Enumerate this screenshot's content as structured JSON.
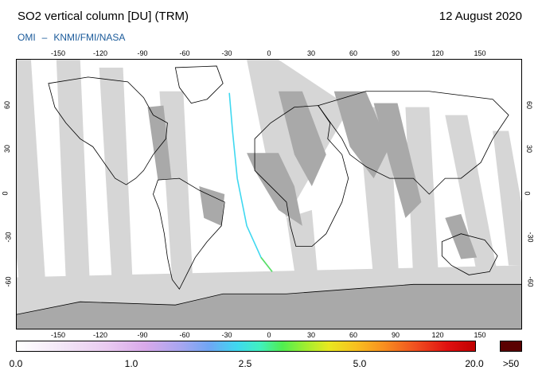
{
  "header": {
    "title": "SO2 vertical column [DU] (TRM)",
    "date": "12 August 2020",
    "credit_left": "OMI",
    "credit_sep": "–",
    "credit_right": "KNMI/FMI/NASA"
  },
  "axes": {
    "lon_ticks": [
      "-150",
      "-120",
      "-90",
      "-60",
      "-30",
      "0",
      "30",
      "60",
      "90",
      "120",
      "150"
    ],
    "lat_ticks": [
      "60",
      "30",
      "0",
      "-30",
      "-60"
    ]
  },
  "colorbar": {
    "labels": [
      "0.0",
      "1.0",
      "2.5",
      "5.0",
      "20.0"
    ],
    "over_label": ">50",
    "over_color": "#5a0000"
  },
  "colors": {
    "swath_dark": "#a8a8a8",
    "swath_light": "#d4d4d4",
    "land_dark": "#a0a0a0",
    "antarctica": "#a9a9a9",
    "data_track": "#3fd8f0"
  }
}
